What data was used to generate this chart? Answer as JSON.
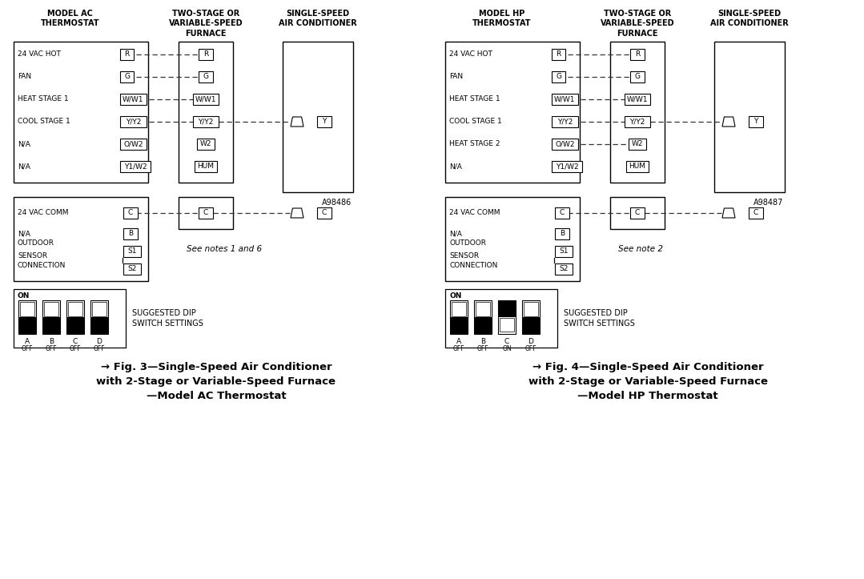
{
  "fig_width": 10.79,
  "fig_height": 7.23,
  "bg_color": "#ffffff",
  "fig3": {
    "title_col1": "MODEL AC\nTHERMOSTAT",
    "title_col2": "TWO-STAGE OR\nVARIABLE-SPEED\nFURNACE",
    "title_col3": "SINGLE-SPEED\nAIR CONDITIONER",
    "thermostat_rows": [
      {
        "label": "24 VAC HOT",
        "terminal": "R",
        "furn_terminal": "R",
        "to_ac": false
      },
      {
        "label": "FAN",
        "terminal": "G",
        "furn_terminal": "G",
        "to_ac": false
      },
      {
        "label": "HEAT STAGE 1",
        "terminal": "W/W1",
        "furn_terminal": "W/W1",
        "to_ac": false
      },
      {
        "label": "COOL STAGE 1",
        "terminal": "Y/Y2",
        "furn_terminal": "Y/Y2",
        "to_ac": true
      },
      {
        "label": "N/A",
        "terminal": "O/W2",
        "furn_terminal": null,
        "to_ac": false
      },
      {
        "label": "N/A",
        "terminal": "Y1/W2",
        "furn_terminal": null,
        "to_ac": false
      }
    ],
    "furnace_extra_rows": [
      "W2",
      "HUM"
    ],
    "lower_rows": [
      {
        "label": "24 VAC COMM",
        "terminal": "C",
        "furn_terminal": "C",
        "to_ac": true
      },
      {
        "label": "N/A",
        "terminal": "B",
        "furn_terminal": null,
        "to_ac": false
      }
    ],
    "note": "See notes 1 and 6",
    "model_num": "A98486",
    "dip_switches": [
      {
        "label": "A",
        "state": "OFF",
        "on": false
      },
      {
        "label": "B",
        "state": "OFF",
        "on": false
      },
      {
        "label": "C",
        "state": "OFF",
        "on": false
      },
      {
        "label": "D",
        "state": "OFF",
        "on": false
      }
    ],
    "caption_line1": "→ Fig. 3—Single-Speed Air Conditioner",
    "caption_line2": "with 2-Stage or Variable-Speed Furnace",
    "caption_line3": "—Model AC Thermostat"
  },
  "fig4": {
    "title_col1": "MODEL HP\nTHERMOSTAT",
    "title_col2": "TWO-STAGE OR\nVARIABLE-SPEED\nFURNACE",
    "title_col3": "SINGLE-SPEED\nAIR CONDITIONER",
    "thermostat_rows": [
      {
        "label": "24 VAC HOT",
        "terminal": "R",
        "furn_terminal": "R",
        "to_ac": false
      },
      {
        "label": "FAN",
        "terminal": "G",
        "furn_terminal": "G",
        "to_ac": false
      },
      {
        "label": "HEAT STAGE 1",
        "terminal": "W/W1",
        "furn_terminal": "W/W1",
        "to_ac": false
      },
      {
        "label": "COOL STAGE 1",
        "terminal": "Y/Y2",
        "furn_terminal": "Y/Y2",
        "to_ac": true
      },
      {
        "label": "HEAT STAGE 2",
        "terminal": "O/W2",
        "furn_terminal": "W2",
        "to_ac": false
      },
      {
        "label": "N/A",
        "terminal": "Y1/W2",
        "furn_terminal": null,
        "to_ac": false
      }
    ],
    "furnace_extra_rows": [
      "HUM"
    ],
    "lower_rows": [
      {
        "label": "24 VAC COMM",
        "terminal": "C",
        "furn_terminal": "C",
        "to_ac": true
      },
      {
        "label": "N/A",
        "terminal": "B",
        "furn_terminal": null,
        "to_ac": false
      }
    ],
    "note": "See note 2",
    "model_num": "A98487",
    "dip_switches": [
      {
        "label": "A",
        "state": "OFF",
        "on": false
      },
      {
        "label": "B",
        "state": "OFF",
        "on": false
      },
      {
        "label": "C",
        "state": "ON",
        "on": true
      },
      {
        "label": "D",
        "state": "OFF",
        "on": false
      }
    ],
    "caption_line1": "→ Fig. 4—Single-Speed Air Conditioner",
    "caption_line2": "with 2-Stage or Variable-Speed Furnace",
    "caption_line3": "—Model HP Thermostat"
  }
}
